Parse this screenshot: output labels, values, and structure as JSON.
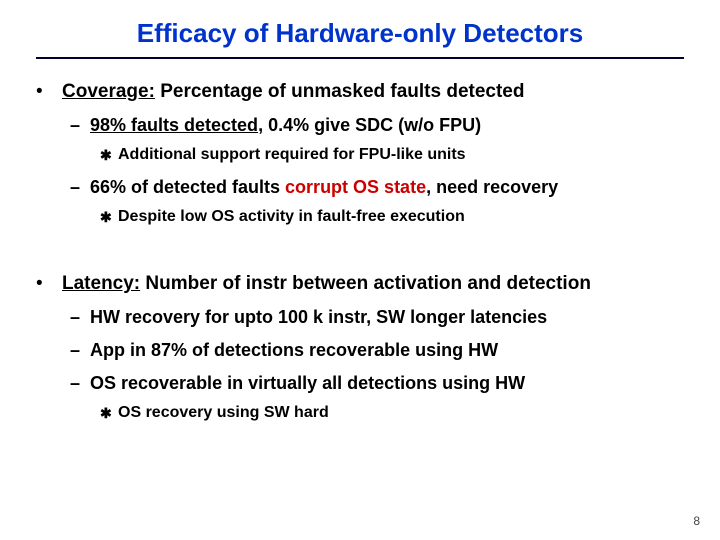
{
  "title": "Efficacy of Hardware-only Detectors",
  "title_color": "#0033cc",
  "underline_color": "#000033",
  "highlight_color": "#cc0000",
  "page_number": "8",
  "bullets": {
    "l1a_lead": "Coverage:",
    "l1a_rest": " Percentage of unmasked faults detected",
    "l2a_u": "98% faults detected",
    "l2a_rest": ", 0.4% give SDC (w/o FPU)",
    "l3a": "Additional support required for FPU-like units",
    "l2b_pre": "66% of detected faults ",
    "l2b_hi": "corrupt OS state",
    "l2b_post": ", need recovery",
    "l3b": "Despite low OS activity in fault-free execution",
    "l1b_lead": "Latency:",
    "l1b_rest": " Number of instr between activation and detection",
    "l2c": "HW recovery for upto 100 k instr, SW longer latencies",
    "l2d": "App in 87% of detections recoverable using HW",
    "l2e": "OS recoverable in virtually all detections using HW",
    "l3c": "OS recovery using SW hard"
  }
}
